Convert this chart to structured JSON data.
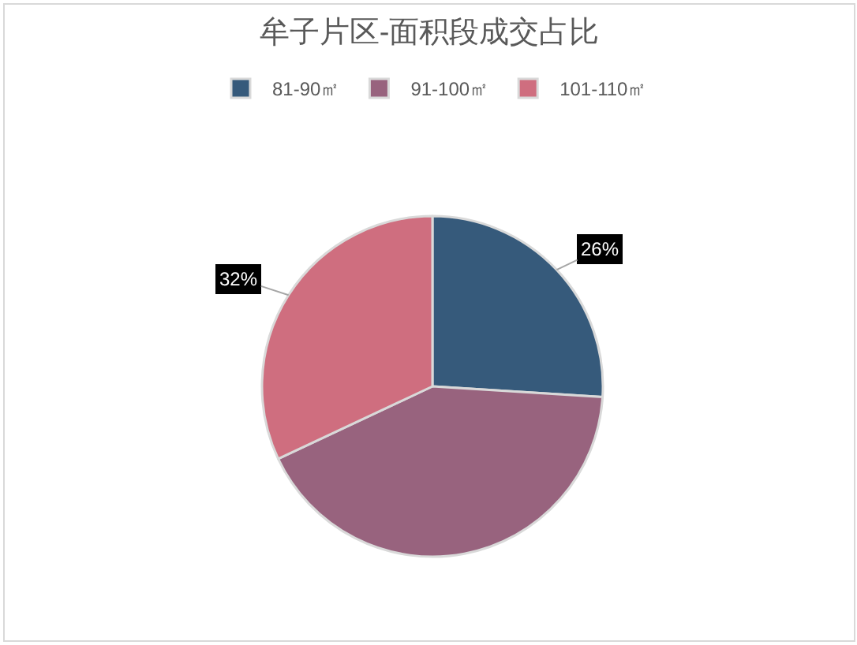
{
  "chart_data": {
    "type": "pie",
    "title": "牟子片区-面积段成交占比",
    "categories": [
      "81-90㎡",
      "91-100㎡",
      "101-110㎡"
    ],
    "values": [
      26,
      42,
      32
    ],
    "colors": [
      "#365a7b",
      "#98637e",
      "#cf6e7f"
    ],
    "value_labels": [
      "26%",
      null,
      "32%"
    ],
    "legend": "top"
  }
}
